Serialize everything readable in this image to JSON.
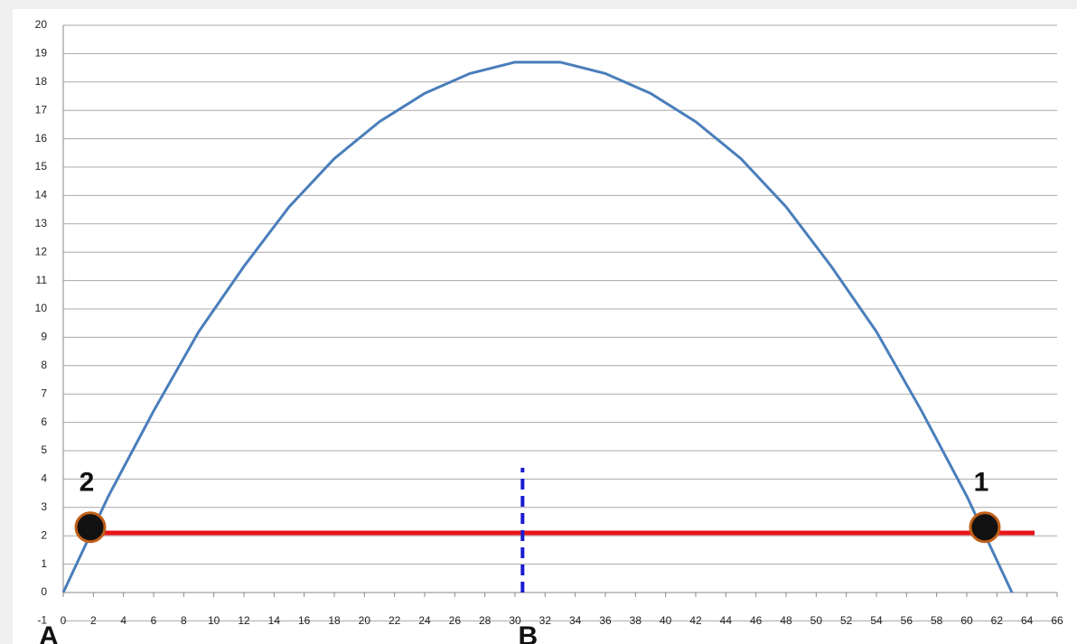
{
  "chart_data": {
    "type": "line",
    "xlim": [
      0,
      66
    ],
    "xticks": [
      0,
      2,
      4,
      6,
      8,
      10,
      12,
      14,
      16,
      18,
      20,
      22,
      24,
      26,
      28,
      30,
      32,
      34,
      36,
      38,
      40,
      42,
      44,
      46,
      48,
      50,
      52,
      54,
      56,
      58,
      60,
      62,
      64,
      66
    ],
    "ylim": [
      -1,
      20
    ],
    "yticks": [
      -1,
      0,
      1,
      2,
      3,
      4,
      5,
      6,
      7,
      8,
      9,
      10,
      11,
      12,
      13,
      14,
      15,
      16,
      17,
      18,
      19,
      20
    ],
    "grid": true,
    "series": [
      {
        "color": "#4a7ebb",
        "x": [
          0,
          3,
          6,
          9,
          12,
          15,
          18,
          21,
          24,
          27,
          30,
          33,
          36,
          39,
          42,
          45,
          48,
          51,
          54,
          57,
          60,
          63
        ],
        "values": [
          0,
          3.4,
          6.4,
          9.2,
          11.5,
          13.6,
          15.3,
          16.6,
          17.6,
          18.3,
          18.7,
          18.7,
          18.3,
          17.6,
          16.6,
          15.3,
          13.6,
          11.5,
          9.2,
          6.4,
          3.4,
          0
        ]
      },
      {
        "color": "#e8141a",
        "x": [
          1.8,
          64.5
        ],
        "values": [
          2.1,
          2.1
        ]
      },
      {
        "color": "#1a1ad0",
        "dashed": true,
        "x": [
          30.5,
          30.5
        ],
        "values": [
          0,
          4.4
        ]
      }
    ],
    "points": [
      {
        "label": "2",
        "x": 1.8,
        "y": 2.3
      },
      {
        "label": "1",
        "x": 61.2,
        "y": 2.3
      }
    ],
    "axis_markers": [
      {
        "label": "A",
        "x": 0
      },
      {
        "label": "B",
        "x": 30.5
      }
    ]
  }
}
